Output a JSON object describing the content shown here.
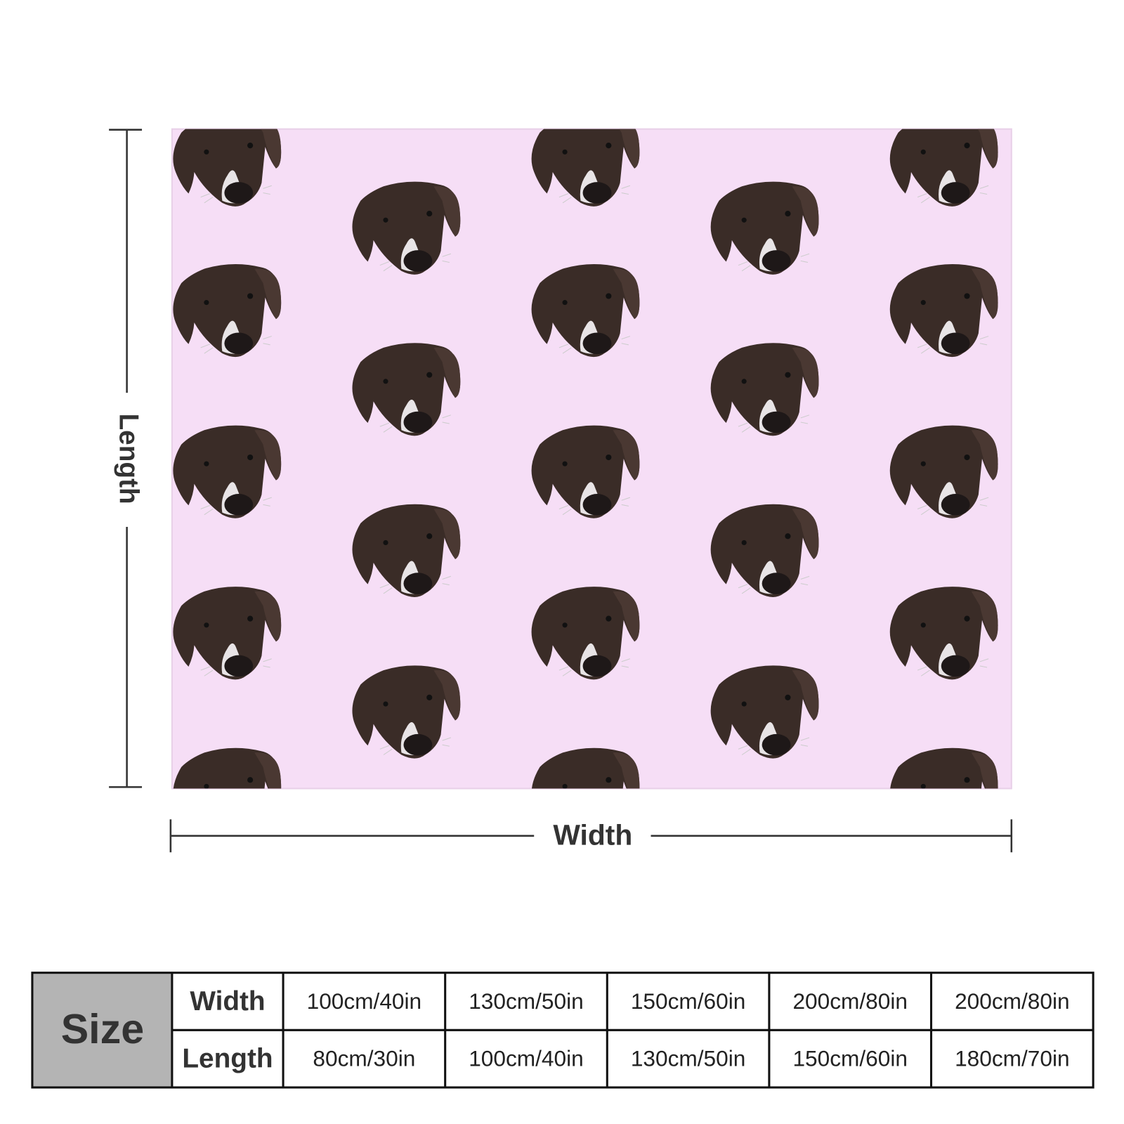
{
  "dimensions": {
    "length_label": "Length",
    "width_label": "Width"
  },
  "size_table": {
    "title": "Size",
    "rows": [
      {
        "label": "Width",
        "values": [
          "100cm/40in",
          "130cm/50in",
          "150cm/60in",
          "200cm/80in",
          "200cm/80in"
        ]
      },
      {
        "label": "Length",
        "values": [
          "80cm/30in",
          "100cm/40in",
          "130cm/50in",
          "150cm/60in",
          "180cm/70in"
        ]
      }
    ]
  }
}
